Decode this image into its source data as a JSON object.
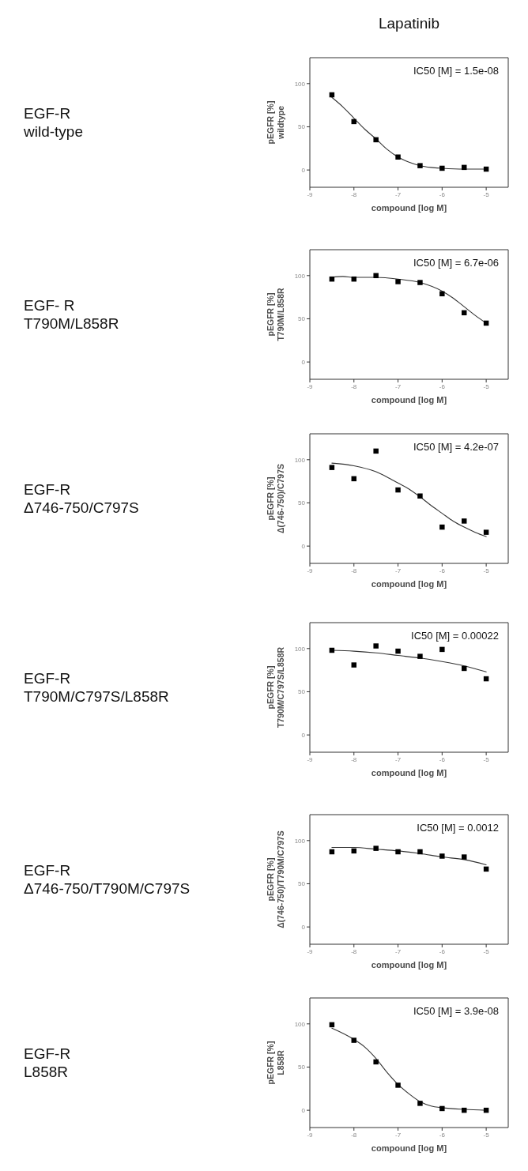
{
  "chart_data": [
    {
      "type": "scatter",
      "xlabel": "compound [log M]",
      "ylabel": "pEGFR [%]\nwildtype",
      "x": [
        -8.5,
        -8,
        -7.5,
        -7,
        -6.5,
        -6,
        -5.5,
        -5
      ],
      "series": [
        {
          "type": "scatter",
          "color": "#000000",
          "values": [
            87,
            56,
            35,
            15,
            5,
            2,
            3,
            1
          ]
        },
        {
          "type": "line",
          "color": "#333333",
          "marker": "none",
          "x": [
            -8.5,
            -8.25,
            -8,
            -7.75,
            -7.5,
            -7.25,
            -7,
            -6.75,
            -6.5,
            -6.25,
            -6,
            -5.5,
            -5
          ],
          "values": [
            84,
            73,
            60,
            47,
            36,
            24,
            15,
            9,
            5,
            3,
            2,
            1,
            1
          ]
        }
      ],
      "xlim": [
        -9,
        -4.5
      ],
      "ylim": [
        -20,
        130
      ],
      "xticks": [
        -9,
        -8,
        -7,
        -6,
        -5
      ],
      "yticks": [
        0,
        50,
        100
      ],
      "marker": "square",
      "annotations": [
        "EGF-R\nwild-type",
        "Lapatinib",
        "IC50 [M] = 1.5e-08"
      ]
    },
    {
      "type": "scatter",
      "xlabel": "compound [log M]",
      "ylabel": "pEGFR [%]\nT790M/L858R",
      "x": [
        -8.5,
        -8,
        -7.5,
        -7,
        -6.5,
        -6,
        -5.5,
        -5
      ],
      "series": [
        {
          "type": "scatter",
          "color": "#000000",
          "values": [
            96,
            96,
            100,
            93,
            92,
            79,
            57,
            45
          ]
        },
        {
          "type": "line",
          "color": "#333333",
          "marker": "none",
          "x": [
            -8.5,
            -8.25,
            -8,
            -7.5,
            -7,
            -6.5,
            -6,
            -5.75,
            -5.5,
            -5.25,
            -5
          ],
          "values": [
            98,
            99,
            98,
            98,
            96,
            92,
            82,
            74,
            64,
            54,
            45
          ]
        }
      ],
      "xlim": [
        -9,
        -4.5
      ],
      "ylim": [
        -20,
        130
      ],
      "xticks": [
        -9,
        -8,
        -7,
        -6,
        -5
      ],
      "yticks": [
        0,
        50,
        100
      ],
      "marker": "square",
      "annotations": [
        "EGF- R\nT790M/L858R",
        "IC50 [M] = 6.7e-06"
      ]
    },
    {
      "type": "scatter",
      "xlabel": "compound [log M]",
      "ylabel": "pEGFR [%]\nΔ(746-750)/C797S",
      "x": [
        -8.5,
        -8,
        -7.5,
        -7,
        -6.5,
        -6,
        -5.5,
        -5
      ],
      "series": [
        {
          "type": "scatter",
          "color": "#000000",
          "values": [
            91,
            78,
            110,
            65,
            58,
            22,
            29,
            16
          ]
        },
        {
          "type": "line",
          "color": "#333333",
          "marker": "none",
          "x": [
            -8.5,
            -8,
            -7.5,
            -7.25,
            -7,
            -6.75,
            -6.5,
            -6.25,
            -6,
            -5.75,
            -5.5,
            -5.25,
            -5
          ],
          "values": [
            96,
            93,
            86,
            80,
            73,
            66,
            57,
            47,
            38,
            29,
            22,
            16,
            11
          ]
        }
      ],
      "xlim": [
        -9,
        -4.5
      ],
      "ylim": [
        -20,
        130
      ],
      "xticks": [
        -9,
        -8,
        -7,
        -6,
        -5
      ],
      "yticks": [
        0,
        50,
        100
      ],
      "marker": "square",
      "annotations": [
        "EGF-R\nΔ746-750/C797S",
        "IC50 [M] = 4.2e-07"
      ]
    },
    {
      "type": "scatter",
      "xlabel": "compound [log M]",
      "ylabel": "pEGFR [%]\nT790M/C797S/L858R",
      "x": [
        -8.5,
        -8,
        -7.5,
        -7,
        -6.5,
        -6,
        -5.5,
        -5
      ],
      "series": [
        {
          "type": "scatter",
          "color": "#000000",
          "values": [
            98,
            81,
            103,
            97,
            91,
            99,
            77,
            65
          ]
        },
        {
          "type": "line",
          "color": "#333333",
          "marker": "none",
          "x": [
            -8.5,
            -8,
            -7.5,
            -7,
            -6.5,
            -6,
            -5.5,
            -5
          ],
          "values": [
            98,
            97,
            95,
            92,
            89,
            85,
            80,
            73
          ]
        }
      ],
      "xlim": [
        -9,
        -4.5
      ],
      "ylim": [
        -20,
        130
      ],
      "xticks": [
        -9,
        -8,
        -7,
        -6,
        -5
      ],
      "yticks": [
        0,
        50,
        100
      ],
      "marker": "square",
      "annotations": [
        "EGF-R\nT790M/C797S/L858R",
        "IC50 [M] = 0.00022"
      ]
    },
    {
      "type": "scatter",
      "xlabel": "compound [log M]",
      "ylabel": "pEGFR [%]\nΔ(746-750)/T790M/C797S",
      "x": [
        -8.5,
        -8,
        -7.5,
        -7,
        -6.5,
        -6,
        -5.5,
        -5
      ],
      "series": [
        {
          "type": "scatter",
          "color": "#000000",
          "values": [
            87,
            88,
            91,
            87,
            87,
            82,
            81,
            67
          ]
        },
        {
          "type": "line",
          "color": "#333333",
          "marker": "none",
          "x": [
            -8.5,
            -8,
            -7.5,
            -7,
            -6.5,
            -6,
            -5.5,
            -5
          ],
          "values": [
            92,
            92,
            90,
            88,
            85,
            81,
            78,
            72
          ]
        }
      ],
      "xlim": [
        -9,
        -4.5
      ],
      "ylim": [
        -20,
        130
      ],
      "xticks": [
        -9,
        -8,
        -7,
        -6,
        -5
      ],
      "yticks": [
        0,
        50,
        100
      ],
      "marker": "square",
      "annotations": [
        "EGF-R\nΔ746-750/T790M/C797S",
        "IC50 [M] = 0.0012"
      ]
    },
    {
      "type": "scatter",
      "xlabel": "compound [log M]",
      "ylabel": "pEGFR [%]\nL858R",
      "x": [
        -8.5,
        -8,
        -7.5,
        -7,
        -6.5,
        -6,
        -5.5,
        -5
      ],
      "series": [
        {
          "type": "scatter",
          "color": "#000000",
          "values": [
            99,
            81,
            56,
            29,
            8,
            2,
            0,
            0
          ]
        },
        {
          "type": "line",
          "color": "#333333",
          "marker": "none",
          "x": [
            -8.5,
            -8,
            -7.75,
            -7.5,
            -7.25,
            -7,
            -6.75,
            -6.5,
            -6.25,
            -6,
            -5.5,
            -5
          ],
          "values": [
            95,
            82,
            73,
            60,
            44,
            30,
            19,
            10,
            5,
            3,
            1,
            0
          ]
        }
      ],
      "xlim": [
        -9,
        -4.5
      ],
      "ylim": [
        -20,
        130
      ],
      "xticks": [
        -9,
        -8,
        -7,
        -6,
        -5
      ],
      "yticks": [
        0,
        50,
        100
      ],
      "marker": "square",
      "annotations": [
        "EGF-R\nL858R",
        "IC50 [M] = 3.9e-08"
      ]
    }
  ]
}
